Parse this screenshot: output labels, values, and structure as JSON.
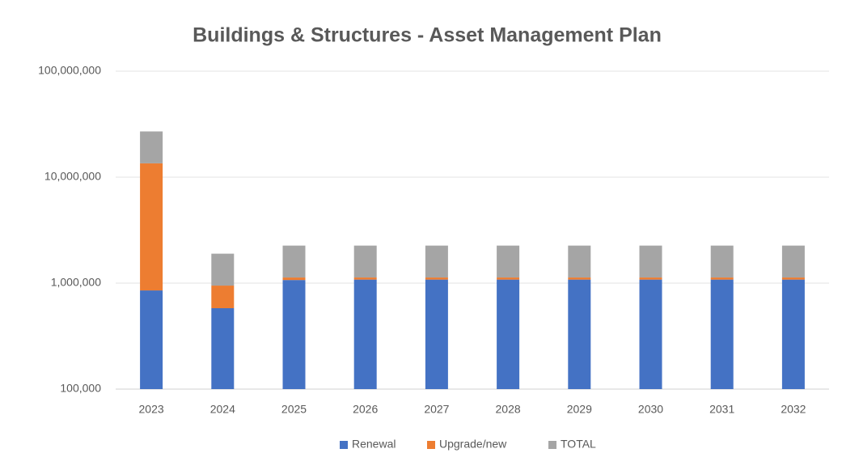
{
  "chart_data": {
    "type": "bar",
    "stacked": true,
    "log_scale": true,
    "grid": true,
    "legend": "bottom",
    "title": "Buildings & Structures - Asset Management Plan",
    "categories": [
      "2023",
      "2024",
      "2025",
      "2026",
      "2027",
      "2028",
      "2029",
      "2030",
      "2031",
      "2032"
    ],
    "series": [
      {
        "name": "Renewal",
        "color": "#4472c4",
        "values": [
          853000,
          580000,
          1070000,
          1080000,
          1080000,
          1080000,
          1080000,
          1080000,
          1080000,
          1080000
        ]
      },
      {
        "name": "Upgrade/new",
        "color": "#ed7d31",
        "values": [
          12650000,
          368000,
          60000,
          50000,
          50000,
          50000,
          50000,
          50000,
          50000,
          50000
        ]
      },
      {
        "name": "TOTAL",
        "color": "#a5a5a5",
        "values": [
          13500000,
          948000,
          1130000,
          1130000,
          1130000,
          1130000,
          1130000,
          1130000,
          1130000,
          1130000
        ]
      }
    ],
    "ylim": [
      100000,
      100000000
    ],
    "yticks": [
      {
        "value": 100000,
        "label": "100,000"
      },
      {
        "value": 1000000,
        "label": "1,000,000"
      },
      {
        "value": 10000000,
        "label": "10,000,000"
      },
      {
        "value": 100000000,
        "label": "100,000,000"
      }
    ]
  }
}
